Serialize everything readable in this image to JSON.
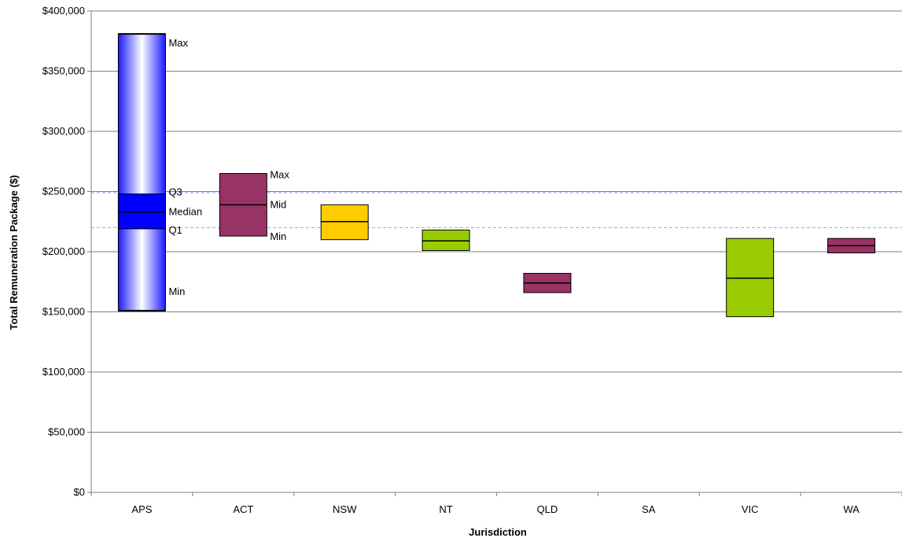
{
  "chart_data": {
    "type": "box-range",
    "xlabel": "Jurisdiction",
    "ylabel": "Total Remuneration Package ($)",
    "ylim": [
      0,
      400000
    ],
    "ytick_step": 50000,
    "yticks": [
      "$0",
      "$50,000",
      "$100,000",
      "$150,000",
      "$200,000",
      "$250,000",
      "$300,000",
      "$350,000",
      "$400,000"
    ],
    "grid": "horizontal",
    "categories": [
      "APS",
      "ACT",
      "NSW",
      "NT",
      "QLD",
      "SA",
      "VIC",
      "WA"
    ],
    "reference_lines": [
      249000,
      220000
    ],
    "reference_line_color": "#9999ff",
    "series": [
      {
        "category": "APS",
        "min": 151000,
        "q1": 219000,
        "median": 233000,
        "q3": 248000,
        "max": 381000,
        "color": "#0000ff",
        "style": "gradient"
      },
      {
        "category": "ACT",
        "min": 213000,
        "mid": 239000,
        "max": 265000,
        "color": "#993366"
      },
      {
        "category": "NSW",
        "min": 210000,
        "mid": 225000,
        "max": 239000,
        "color": "#ffcc00"
      },
      {
        "category": "NT",
        "min": 201000,
        "mid": 209000,
        "max": 218000,
        "color": "#99cc00"
      },
      {
        "category": "QLD",
        "min": 166000,
        "mid": 174000,
        "max": 182000,
        "color": "#993366"
      },
      {
        "category": "SA"
      },
      {
        "category": "VIC",
        "min": 146000,
        "mid": 178000,
        "max": 211000,
        "color": "#99cc00"
      },
      {
        "category": "WA",
        "min": 199000,
        "mid": 205000,
        "max": 211000,
        "color": "#993366"
      }
    ],
    "annotations": {
      "APS": {
        "max": "Max",
        "q3": "Q3",
        "median": "Median",
        "q1": "Q1",
        "min": "Min"
      },
      "ACT": {
        "max": "Max",
        "mid": "Mid",
        "min": "Min"
      }
    }
  }
}
